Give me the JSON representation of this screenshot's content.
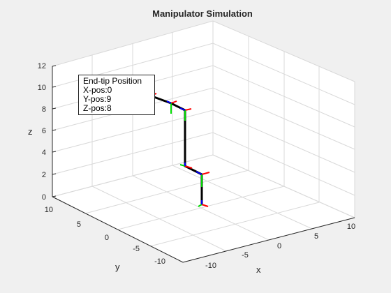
{
  "figure": {
    "title": "Manipulator Simulation",
    "xlabel": "x",
    "ylabel": "y",
    "zlabel": "z",
    "xticks": [
      "-10",
      "-5",
      "0",
      "5",
      "10"
    ],
    "yticks": [
      "-10",
      "-5",
      "0",
      "5",
      "10"
    ],
    "zticks": [
      "0",
      "2",
      "4",
      "6",
      "8",
      "10",
      "12"
    ]
  },
  "info_box": {
    "title": "End-tip Position",
    "x": "X-pos:0",
    "y": "Y-pos:9",
    "z": "Z-pos:8"
  },
  "colors": {
    "background": "#f0f0f0",
    "axes_bg": "#ffffff",
    "grid": "#d9d9d9",
    "link": "#000000",
    "frame_x": "#ff0000",
    "frame_y": "#00dd00",
    "frame_z": "#0000ff"
  }
}
